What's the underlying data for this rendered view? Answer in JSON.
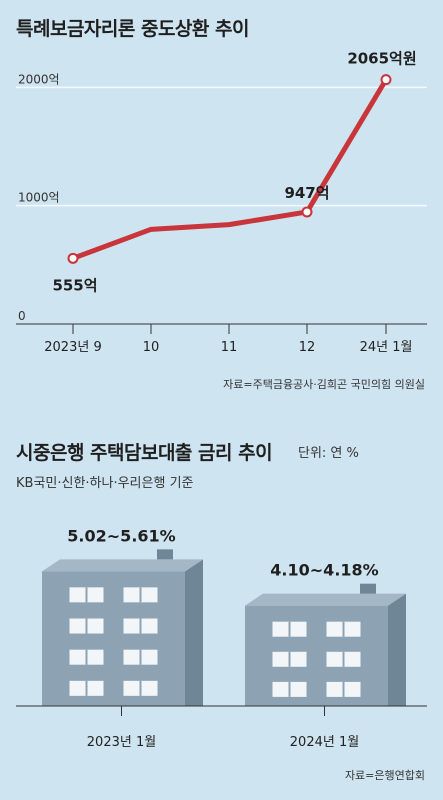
{
  "chart_data": [
    {
      "type": "line",
      "title": "특례보금자리론 중도상환 추이",
      "categories": [
        "2023년 9",
        "10",
        "11",
        "12",
        "24년 1월"
      ],
      "values": [
        555,
        800,
        840,
        947,
        2065
      ],
      "data_labels": [
        "555억",
        "",
        "",
        "947억",
        "2065억원"
      ],
      "yticks": [
        "0",
        "1000억",
        "2000억"
      ],
      "ytick_values": [
        0,
        1000,
        2000
      ],
      "ylim": [
        0,
        2400
      ],
      "grid": true,
      "line_color": "#c8353a",
      "source": "자료=주택금융공사·김희곤 국민의힘 의원실"
    },
    {
      "type": "bar",
      "title": "시중은행 주택담보대출 금리 추이",
      "unit": "단위: 연 %",
      "subtitle": "KB국민·신한·하나·우리은행 기준",
      "categories": [
        "2023년 1월",
        "2024년 1월"
      ],
      "values": [
        [
          5.02,
          5.61
        ],
        [
          4.1,
          4.18
        ]
      ],
      "labels": [
        "5.02~5.61%",
        "4.10~4.18%"
      ],
      "source": "자료=은행연합회",
      "colors": {
        "building_front": "#8da3b4",
        "building_side": "#6f8697",
        "window": "#f2f6f9"
      }
    }
  ]
}
